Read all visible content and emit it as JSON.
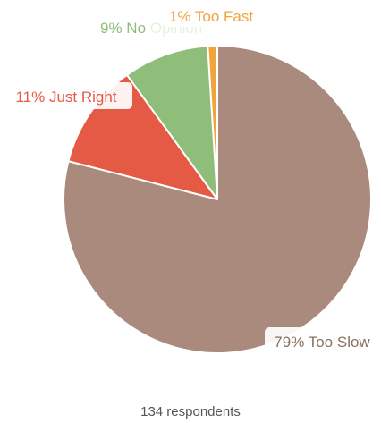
{
  "chart_data": {
    "type": "pie",
    "slices": [
      {
        "label": "Too Slow",
        "percent": 79,
        "display": "79% Too Slow",
        "color": "#a98a7c"
      },
      {
        "label": "Just Right",
        "percent": 11,
        "display": "11% Just Right",
        "color": "#e45a44"
      },
      {
        "label": "No Opinion",
        "percent": 9,
        "display": "9% No Opinion",
        "color": "#8fbd7a"
      },
      {
        "label": "Too Fast",
        "percent": 1,
        "display": "1% Too Fast",
        "color": "#f0a43c"
      }
    ],
    "total": 134,
    "footer": "134 respondents"
  }
}
